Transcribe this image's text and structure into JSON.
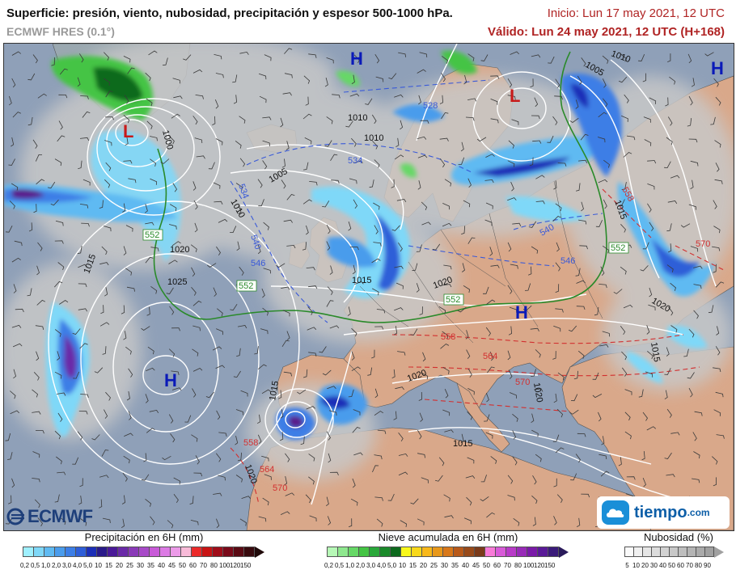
{
  "header": {
    "title": "Superficie: presión, viento, nubosidad, precipitación y espesor 500-1000 hPa.",
    "model": "ECMWF HRES (0.1°)",
    "init": "Inicio: Lun 17 may 2021, 12 UTC",
    "valid": "Válido: Lun 24 may 2021, 12 UTC (H+168)"
  },
  "map": {
    "pressure_labels": [
      "1000",
      "1005",
      "1010",
      "1015",
      "1020",
      "1025"
    ],
    "thickness_labels": [
      "528",
      "534",
      "540",
      "546",
      "552",
      "558",
      "564",
      "570"
    ],
    "centers": {
      "high": "H",
      "low": "L"
    },
    "colors": {
      "land": "#d9a88a",
      "sea": "#8fa0b8",
      "cloud": "#c8c8c8",
      "rain_light": "#7fd8f8",
      "rain_mod": "#3c8ce8",
      "rain_heavy": "#1c2fb8",
      "rain_extreme": "#5a1c8c",
      "snow": "#2aa83a",
      "snow_heavy": "#0e7a1e",
      "isobar": "#ffffff",
      "thick_cold": "#3a5ad8",
      "thick_warm": "#d23030",
      "thick_552": "#2a8a2a",
      "center_H": "#0a1ab8",
      "center_L": "#c81a1a"
    }
  },
  "logos": {
    "ecmwf": "ECMWF",
    "tiempo": "tiempo",
    "tiempo_suffix": ".com"
  },
  "legends": {
    "precip": {
      "title": "Precipitación en 6H (mm)",
      "ticks": [
        "0,2",
        "0,5",
        "1,0",
        "2,0",
        "3,0",
        "4,0",
        "5,0",
        "10",
        "15",
        "20",
        "25",
        "30",
        "35",
        "40",
        "45",
        "50",
        "60",
        "70",
        "80",
        "100",
        "120",
        "150"
      ],
      "colors": [
        "#9ff0ff",
        "#7fd8f8",
        "#5fbaf2",
        "#4a9cec",
        "#3c7ee6",
        "#2e5ed8",
        "#1c2fb8",
        "#2a1a8a",
        "#4a1a98",
        "#6a2aa8",
        "#8a3ab8",
        "#a84ac8",
        "#c85ad8",
        "#dc7ae4",
        "#ec9ae8",
        "#f8bad8",
        "#ec2a2a",
        "#c81414",
        "#a00e1a",
        "#7a0a1a",
        "#5a0a14",
        "#380a0e"
      ]
    },
    "snow": {
      "title": "Nieve acumulada en 6H (mm)",
      "ticks": [
        "0,2",
        "0,5",
        "1,0",
        "2,0",
        "3,0",
        "4,0",
        "5,0",
        "10",
        "15",
        "20",
        "25",
        "30",
        "35",
        "40",
        "45",
        "50",
        "60",
        "70",
        "80",
        "100",
        "120",
        "150"
      ],
      "colors": [
        "#b6f8b6",
        "#8ee88e",
        "#66d866",
        "#44c444",
        "#2aa83a",
        "#1a8a2a",
        "#0e6a1e",
        "#f8f81a",
        "#f8d81a",
        "#f8b81a",
        "#e8981a",
        "#d8781a",
        "#b85a1a",
        "#984a1a",
        "#7a3a1a",
        "#f87ad8",
        "#d85ad8",
        "#b83ac8",
        "#982ab8",
        "#7a1aa8",
        "#5a1a98",
        "#3a1a7a"
      ]
    },
    "cloud": {
      "title": "Nubosidad (%)",
      "ticks": [
        "5",
        "10",
        "20",
        "30",
        "40",
        "50",
        "60",
        "70",
        "80",
        "90"
      ],
      "colors": [
        "#fafafa",
        "#f0f0f0",
        "#e6e6e6",
        "#dcdcdc",
        "#d2d2d2",
        "#c8c8c8",
        "#bebebe",
        "#b4b4b4",
        "#aaaaaa",
        "#a0a0a0"
      ]
    }
  }
}
